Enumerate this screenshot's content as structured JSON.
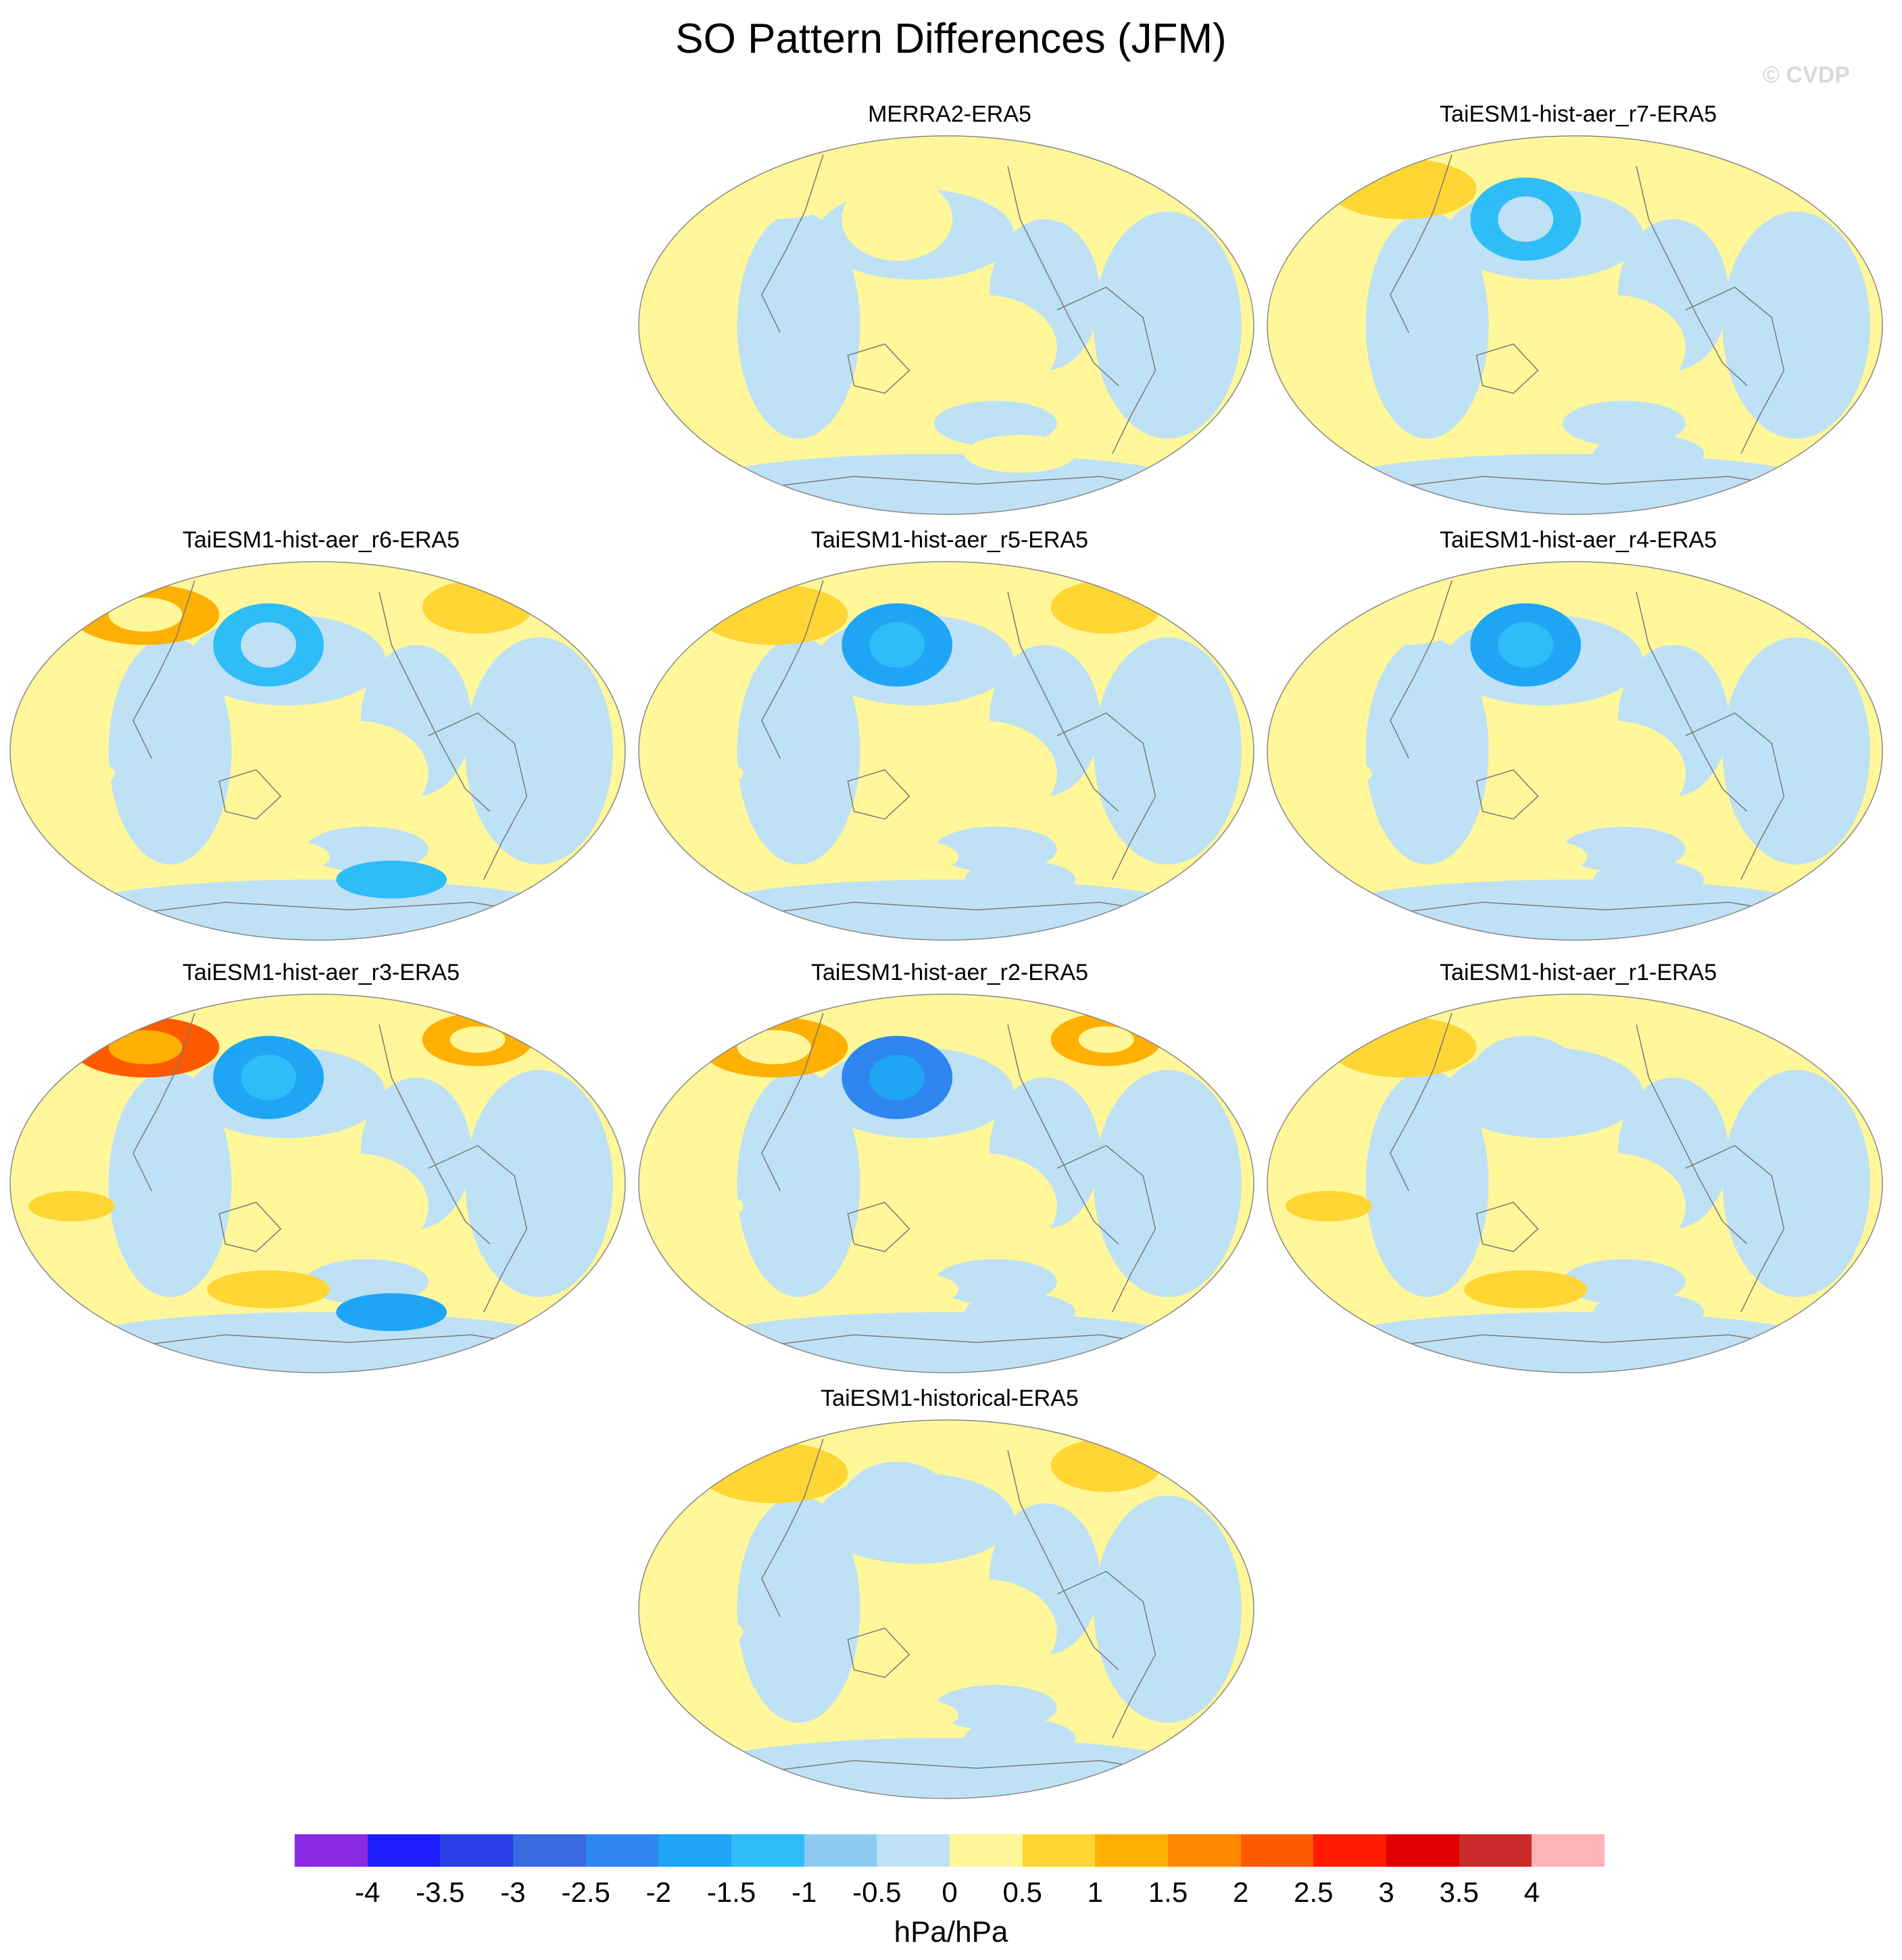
{
  "title": "SO Pattern Differences (JFM)",
  "credit": "© CVDP",
  "colors": {
    "ocean_neutral_neg": "#bfe1f5",
    "land_line": "#7a7a7a"
  },
  "panels": [
    {
      "label": "MERRA2-ERA5",
      "scheme": [
        0,
        1,
        0,
        1,
        0
      ]
    },
    {
      "label": "TaiESM1-hist-aer_r7-ERA5",
      "scheme": [
        2,
        -2,
        1,
        -1,
        0
      ]
    },
    {
      "label": "TaiESM1-hist-aer_r6-ERA5",
      "scheme": [
        3,
        -2,
        2,
        -2,
        1
      ]
    },
    {
      "label": "TaiESM1-hist-aer_r5-ERA5",
      "scheme": [
        2,
        -3,
        2,
        -1,
        1
      ]
    },
    {
      "label": "TaiESM1-hist-aer_r4-ERA5",
      "scheme": [
        1,
        -3,
        1,
        -1,
        1
      ]
    },
    {
      "label": "TaiESM1-hist-aer_r3-ERA5",
      "scheme": [
        5,
        -3,
        3,
        -3,
        2
      ]
    },
    {
      "label": "TaiESM1-hist-aer_r2-ERA5",
      "scheme": [
        3,
        -4,
        3,
        -1,
        1
      ]
    },
    {
      "label": "TaiESM1-hist-aer_r1-ERA5",
      "scheme": [
        2,
        -1,
        1,
        -1,
        2
      ]
    },
    {
      "label": "TaiESM1-historical-ERA5",
      "scheme": [
        2,
        -1,
        2,
        -1,
        1
      ]
    }
  ],
  "chart_data": {
    "type": "heatmap",
    "title": "SO Pattern Differences (JFM)",
    "units": "hPa/hPa",
    "levels": [
      -4,
      -3.5,
      -3,
      -2.5,
      -2,
      -1.5,
      -1,
      -0.5,
      0,
      0.5,
      1,
      1.5,
      2,
      2.5,
      3,
      3.5,
      4
    ],
    "tick_labels": [
      "-4",
      "-3.5",
      "-3",
      "-2.5",
      "-2",
      "-1.5",
      "-1",
      "-0.5",
      "0",
      "0.5",
      "1",
      "1.5",
      "2",
      "2.5",
      "3",
      "3.5",
      "4"
    ],
    "colorbar_colors": [
      "#8a2be2",
      "#1e1eff",
      "#2b3fe8",
      "#3a6ae0",
      "#2e86f0",
      "#1ea6f5",
      "#2ebdf7",
      "#8ccbef",
      "#bfe1f5",
      "#fff79a",
      "#ffd633",
      "#ffb000",
      "#ff8800",
      "#ff5a00",
      "#ff1a00",
      "#e00000",
      "#cc2a2a",
      "#ffb3b8"
    ],
    "panels": [
      "MERRA2-ERA5",
      "TaiESM1-hist-aer_r7-ERA5",
      "TaiESM1-hist-aer_r6-ERA5",
      "TaiESM1-hist-aer_r5-ERA5",
      "TaiESM1-hist-aer_r4-ERA5",
      "TaiESM1-hist-aer_r3-ERA5",
      "TaiESM1-hist-aer_r2-ERA5",
      "TaiESM1-hist-aer_r1-ERA5",
      "TaiESM1-historical-ERA5"
    ]
  }
}
